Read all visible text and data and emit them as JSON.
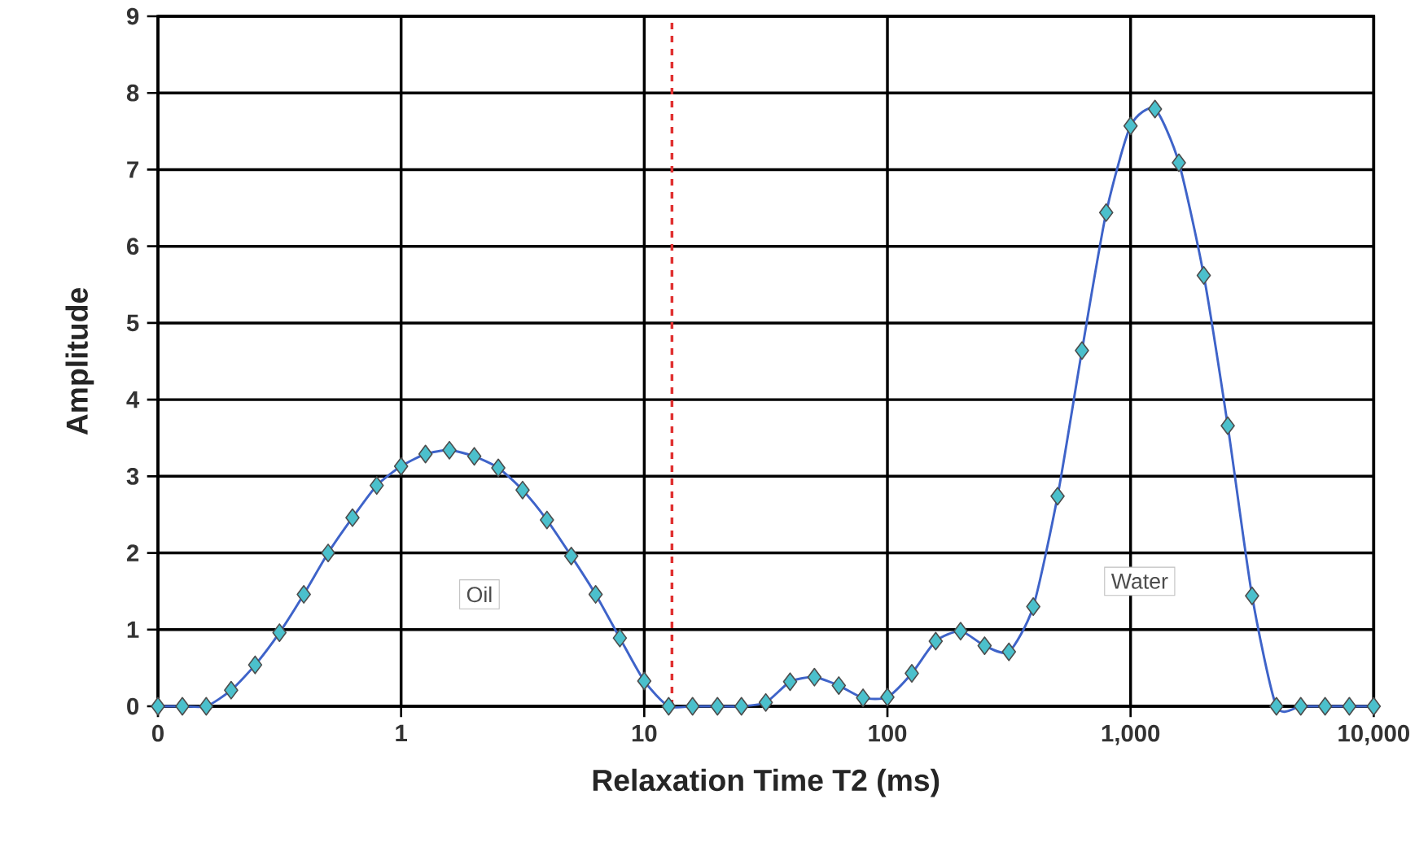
{
  "chart_data": {
    "type": "line",
    "xlabel": "Relaxation Time T2 (ms)",
    "ylabel": "Amplitude",
    "log": "x",
    "grid": true,
    "marker": "diamond",
    "line_style": "solid",
    "x": [
      0.1,
      0.126,
      0.158,
      0.2,
      0.251,
      0.316,
      0.398,
      0.501,
      0.631,
      0.794,
      1,
      1.26,
      1.58,
      2,
      2.51,
      3.16,
      3.98,
      5.01,
      6.31,
      7.94,
      10,
      12.6,
      15.8,
      20,
      25.1,
      31.6,
      39.8,
      50.1,
      63.1,
      79.4,
      100,
      126,
      158,
      200,
      251,
      316,
      398,
      501,
      631,
      794,
      1000,
      1260,
      1580,
      2000,
      2510,
      3160,
      3980,
      5010,
      6310,
      7940,
      10000
    ],
    "series": [
      {
        "color": "#4bc0cc",
        "values": [
          0,
          0,
          0,
          0.21,
          0.54,
          0.96,
          1.46,
          2.0,
          2.46,
          2.88,
          3.13,
          3.29,
          3.34,
          3.26,
          3.11,
          2.82,
          2.43,
          1.96,
          1.46,
          0.89,
          0.33,
          0,
          0,
          0,
          0,
          0.05,
          0.32,
          0.38,
          0.27,
          0.11,
          0.12,
          0.43,
          0.85,
          0.98,
          0.79,
          0.71,
          1.3,
          2.74,
          4.64,
          6.44,
          7.57,
          7.79,
          7.09,
          5.62,
          3.66,
          1.44,
          0,
          0,
          0,
          0,
          0
        ]
      }
    ],
    "xlim": [
      0.1,
      10000
    ],
    "xticks": [
      {
        "value": 0.1,
        "label": "0"
      },
      1,
      10,
      100,
      {
        "value": 1000,
        "label": "1,000"
      },
      {
        "value": 10000,
        "label": "10,000"
      }
    ],
    "ylim": [
      0,
      9
    ],
    "yticks": [
      0,
      1,
      2,
      3,
      4,
      5,
      6,
      7,
      8,
      9
    ],
    "ref_lines": [
      {
        "axis": "x",
        "value": 13,
        "color": "#e03030",
        "line_style": "dashed"
      }
    ],
    "annotations": [
      {
        "text": "Oil",
        "x": 2.1,
        "y": 1.46
      },
      {
        "text": "Water",
        "x": 1090,
        "y": 1.63
      }
    ]
  }
}
